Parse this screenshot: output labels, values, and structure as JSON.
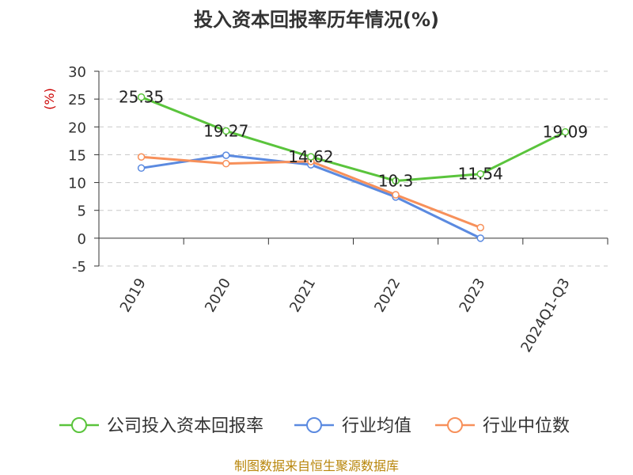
{
  "chart_data": {
    "type": "line",
    "title": "投入资本回报率历年情况(%)",
    "ylabel": "(%)",
    "xlabel": "",
    "categories": [
      "2019",
      "2020",
      "2021",
      "2022",
      "2023",
      "2024Q1-Q3"
    ],
    "ylim": [
      -5,
      30
    ],
    "yticks": [
      30,
      25,
      20,
      15,
      10,
      5,
      0,
      -5
    ],
    "grid": true,
    "legend_position": "bottom",
    "series": [
      {
        "name": "公司投入资本回报率",
        "color": "#5ac43c",
        "values": [
          25.35,
          19.27,
          14.62,
          10.3,
          11.54,
          19.09
        ],
        "labels": [
          "25.35",
          "19.27",
          "14.62",
          "10.3",
          "11.54",
          "19.09"
        ]
      },
      {
        "name": "行业均值",
        "color": "#5b8ae0",
        "values": [
          12.6,
          14.9,
          13.2,
          7.4,
          0.0,
          null
        ],
        "labels": []
      },
      {
        "name": "行业中位数",
        "color": "#f7905a",
        "values": [
          14.6,
          13.4,
          13.8,
          7.8,
          1.9,
          null
        ],
        "labels": []
      }
    ],
    "source": "制图数据来自恒生聚源数据库"
  }
}
